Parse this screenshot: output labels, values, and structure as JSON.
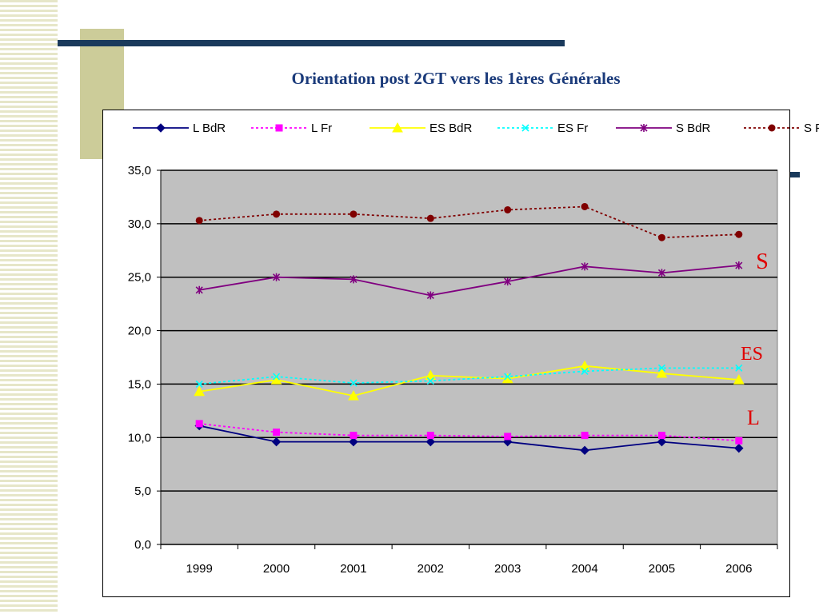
{
  "slide": {
    "title": "Orientation post 2GT vers les 1ères Générales"
  },
  "chart_data": {
    "type": "line",
    "x": [
      "1999",
      "2000",
      "2001",
      "2002",
      "2003",
      "2004",
      "2005",
      "2006"
    ],
    "ylim": [
      0,
      35
    ],
    "y_ticks": [
      "0,0",
      "5,0",
      "10,0",
      "15,0",
      "20,0",
      "25,0",
      "30,0",
      "35,0"
    ],
    "y_tick_values": [
      0,
      5,
      10,
      15,
      20,
      25,
      30,
      35
    ],
    "grid": true,
    "plot_background": "#c0c0c0",
    "legend_position": "top",
    "series": [
      {
        "name": "L BdR",
        "color": "#000080",
        "dash": "solid",
        "marker": "diamond",
        "values": [
          11.1,
          9.6,
          9.6,
          9.6,
          9.6,
          8.8,
          9.6,
          9.0
        ]
      },
      {
        "name": "L Fr",
        "color": "#ff00ff",
        "dash": "dotted",
        "marker": "square",
        "values": [
          11.3,
          10.5,
          10.2,
          10.2,
          10.1,
          10.2,
          10.2,
          9.7
        ]
      },
      {
        "name": "ES BdR",
        "color": "#ffff00",
        "dash": "solid",
        "marker": "triangle",
        "values": [
          14.3,
          15.4,
          13.9,
          15.8,
          15.5,
          16.7,
          16.0,
          15.4
        ]
      },
      {
        "name": "ES Fr",
        "color": "#00ffff",
        "dash": "dotted",
        "marker": "x",
        "values": [
          15.0,
          15.7,
          15.1,
          15.3,
          15.7,
          16.2,
          16.5,
          16.5
        ]
      },
      {
        "name": "S BdR",
        "color": "#800080",
        "dash": "solid",
        "marker": "star",
        "values": [
          23.8,
          25.0,
          24.8,
          23.3,
          24.6,
          26.0,
          25.4,
          26.1
        ]
      },
      {
        "name": "S Fr",
        "color": "#800000",
        "dash": "dotted",
        "marker": "circle",
        "values": [
          30.3,
          30.9,
          30.9,
          30.5,
          31.3,
          31.6,
          28.7,
          29.0
        ]
      }
    ],
    "annotations": [
      {
        "text": "S",
        "color": "#e00000"
      },
      {
        "text": "ES",
        "color": "#e00000"
      },
      {
        "text": "L",
        "color": "#e00000"
      }
    ]
  }
}
